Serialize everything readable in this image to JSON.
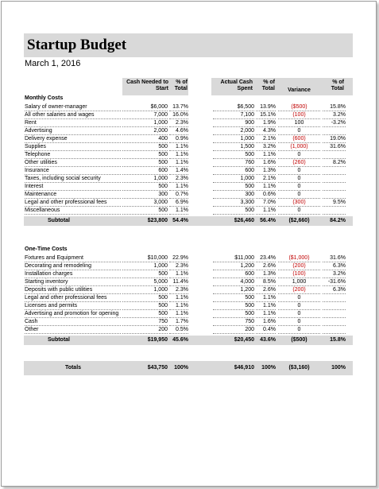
{
  "title": "Startup Budget",
  "date": "March 1, 2016",
  "headers": {
    "needed": "Cash Needed to Start",
    "pct1": "% of Total",
    "spent": "Actual Cash Spent",
    "pct2": "% of Total",
    "variance": "Variance",
    "pct3": "% of Total"
  },
  "monthly": {
    "heading": "Monthly Costs",
    "rows": [
      {
        "label": "Salary of owner-manager",
        "needed": "$6,000",
        "pct1": "13.7%",
        "spent": "$6,500",
        "pct2": "13.9%",
        "variance": "($500)",
        "neg": true,
        "pct3": "15.8%"
      },
      {
        "label": "All other salaries and wages",
        "needed": "7,000",
        "pct1": "16.0%",
        "spent": "7,100",
        "pct2": "15.1%",
        "variance": "(100)",
        "neg": true,
        "pct3": "3.2%"
      },
      {
        "label": "Rent",
        "needed": "1,000",
        "pct1": "2.3%",
        "spent": "900",
        "pct2": "1.9%",
        "variance": "100",
        "neg": false,
        "pct3": "-3.2%"
      },
      {
        "label": "Advertising",
        "needed": "2,000",
        "pct1": "4.6%",
        "spent": "2,000",
        "pct2": "4.3%",
        "variance": "0",
        "neg": false,
        "pct3": ""
      },
      {
        "label": "Delivery expense",
        "needed": "400",
        "pct1": "0.9%",
        "spent": "1,000",
        "pct2": "2.1%",
        "variance": "(600)",
        "neg": true,
        "pct3": "19.0%"
      },
      {
        "label": "Supplies",
        "needed": "500",
        "pct1": "1.1%",
        "spent": "1,500",
        "pct2": "3.2%",
        "variance": "(1,000)",
        "neg": true,
        "pct3": "31.6%"
      },
      {
        "label": "Telephone",
        "needed": "500",
        "pct1": "1.1%",
        "spent": "500",
        "pct2": "1.1%",
        "variance": "0",
        "neg": false,
        "pct3": ""
      },
      {
        "label": "Other utilities",
        "needed": "500",
        "pct1": "1.1%",
        "spent": "760",
        "pct2": "1.6%",
        "variance": "(260)",
        "neg": true,
        "pct3": "8.2%"
      },
      {
        "label": "Insurance",
        "needed": "600",
        "pct1": "1.4%",
        "spent": "600",
        "pct2": "1.3%",
        "variance": "0",
        "neg": false,
        "pct3": ""
      },
      {
        "label": "Taxes, including social security",
        "needed": "1,000",
        "pct1": "2.3%",
        "spent": "1,000",
        "pct2": "2.1%",
        "variance": "0",
        "neg": false,
        "pct3": ""
      },
      {
        "label": "Interest",
        "needed": "500",
        "pct1": "1.1%",
        "spent": "500",
        "pct2": "1.1%",
        "variance": "0",
        "neg": false,
        "pct3": ""
      },
      {
        "label": "Maintenance",
        "needed": "300",
        "pct1": "0.7%",
        "spent": "300",
        "pct2": "0.6%",
        "variance": "0",
        "neg": false,
        "pct3": ""
      },
      {
        "label": "Legal and other professional fees",
        "needed": "3,000",
        "pct1": "6.9%",
        "spent": "3,300",
        "pct2": "7.0%",
        "variance": "(300)",
        "neg": true,
        "pct3": "9.5%"
      },
      {
        "label": "Miscellaneous",
        "needed": "500",
        "pct1": "1.1%",
        "spent": "500",
        "pct2": "1.1%",
        "variance": "0",
        "neg": false,
        "pct3": ""
      }
    ],
    "subtotal": {
      "label": "Subtotal",
      "needed": "$23,800",
      "pct1": "54.4%",
      "spent": "$26,460",
      "pct2": "56.4%",
      "variance": "($2,660)",
      "pct3": "84.2%"
    }
  },
  "onetime": {
    "heading": "One-Time Costs",
    "rows": [
      {
        "label": "Fixtures and Equipment",
        "needed": "$10,000",
        "pct1": "22.9%",
        "spent": "$11,000",
        "pct2": "23.4%",
        "variance": "($1,000)",
        "neg": true,
        "pct3": "31.6%"
      },
      {
        "label": "Decorating and remodeling",
        "needed": "1,000",
        "pct1": "2.3%",
        "spent": "1,200",
        "pct2": "2.6%",
        "variance": "(200)",
        "neg": true,
        "pct3": "6.3%"
      },
      {
        "label": "Installation charges",
        "needed": "500",
        "pct1": "1.1%",
        "spent": "600",
        "pct2": "1.3%",
        "variance": "(100)",
        "neg": true,
        "pct3": "3.2%"
      },
      {
        "label": "Starting inventory",
        "needed": "5,000",
        "pct1": "11.4%",
        "spent": "4,000",
        "pct2": "8.5%",
        "variance": "1,000",
        "neg": false,
        "pct3": "-31.6%"
      },
      {
        "label": "Deposits with public utilities",
        "needed": "1,000",
        "pct1": "2.3%",
        "spent": "1,200",
        "pct2": "2.6%",
        "variance": "(200)",
        "neg": true,
        "pct3": "6.3%"
      },
      {
        "label": "Legal and other professional fees",
        "needed": "500",
        "pct1": "1.1%",
        "spent": "500",
        "pct2": "1.1%",
        "variance": "0",
        "neg": false,
        "pct3": ""
      },
      {
        "label": "Licenses and permits",
        "needed": "500",
        "pct1": "1.1%",
        "spent": "500",
        "pct2": "1.1%",
        "variance": "0",
        "neg": false,
        "pct3": ""
      },
      {
        "label": "Advertising and promotion for opening",
        "needed": "500",
        "pct1": "1.1%",
        "spent": "500",
        "pct2": "1.1%",
        "variance": "0",
        "neg": false,
        "pct3": ""
      },
      {
        "label": "Cash",
        "needed": "750",
        "pct1": "1.7%",
        "spent": "750",
        "pct2": "1.6%",
        "variance": "0",
        "neg": false,
        "pct3": ""
      },
      {
        "label": "Other",
        "needed": "200",
        "pct1": "0.5%",
        "spent": "200",
        "pct2": "0.4%",
        "variance": "0",
        "neg": false,
        "pct3": ""
      }
    ],
    "subtotal": {
      "label": "Subtotal",
      "needed": "$19,950",
      "pct1": "45.6%",
      "spent": "$20,450",
      "pct2": "43.6%",
      "variance": "($500)",
      "pct3": "15.8%"
    }
  },
  "totals": {
    "label": "Totals",
    "needed": "$43,750",
    "pct1": "100%",
    "spent": "$46,910",
    "pct2": "100%",
    "variance": "($3,160)",
    "pct3": "100%"
  }
}
